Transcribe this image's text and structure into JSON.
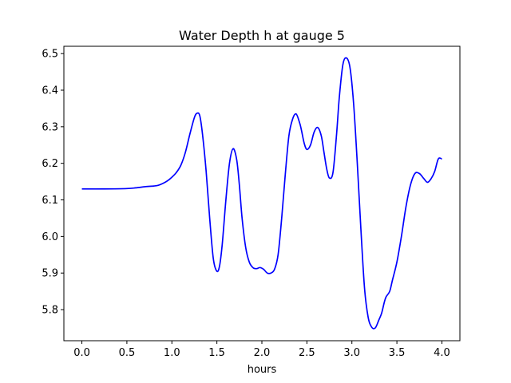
{
  "chart_data": {
    "type": "line",
    "title": "Water Depth h at gauge 5",
    "xlabel": "hours",
    "ylabel": "",
    "xlim": [
      -0.2,
      4.2
    ],
    "ylim": [
      5.715,
      6.52
    ],
    "xticks": [
      0.0,
      0.5,
      1.0,
      1.5,
      2.0,
      2.5,
      3.0,
      3.5,
      4.0
    ],
    "xtick_labels": [
      "0.0",
      "0.5",
      "1.0",
      "1.5",
      "2.0",
      "2.5",
      "3.0",
      "3.5",
      "4.0"
    ],
    "yticks": [
      5.8,
      5.9,
      6.0,
      6.1,
      6.2,
      6.3,
      6.4,
      6.5
    ],
    "ytick_labels": [
      "5.8",
      "5.9",
      "6.0",
      "6.1",
      "6.2",
      "6.3",
      "6.4",
      "6.5"
    ],
    "grid": false,
    "series": [
      {
        "name": "",
        "color": "#0000ff",
        "x": [
          0.0,
          0.25,
          0.5,
          0.6,
          0.7,
          0.8,
          0.85,
          0.9,
          0.95,
          1.0,
          1.05,
          1.1,
          1.15,
          1.2,
          1.25,
          1.28,
          1.31,
          1.34,
          1.38,
          1.42,
          1.46,
          1.5,
          1.53,
          1.56,
          1.6,
          1.64,
          1.68,
          1.72,
          1.75,
          1.78,
          1.82,
          1.86,
          1.9,
          1.94,
          1.98,
          2.02,
          2.06,
          2.1,
          2.14,
          2.18,
          2.22,
          2.26,
          2.3,
          2.34,
          2.38,
          2.42,
          2.44,
          2.47,
          2.5,
          2.54,
          2.58,
          2.62,
          2.66,
          2.69,
          2.72,
          2.75,
          2.79,
          2.83,
          2.86,
          2.9,
          2.94,
          2.98,
          3.02,
          3.06,
          3.1,
          3.14,
          3.18,
          3.22,
          3.26,
          3.3,
          3.33,
          3.36,
          3.38,
          3.42,
          3.45,
          3.5,
          3.55,
          3.6,
          3.65,
          3.7,
          3.75,
          3.8,
          3.84,
          3.88,
          3.92,
          3.96,
          4.0
        ],
        "y": [
          6.13,
          6.13,
          6.131,
          6.133,
          6.136,
          6.138,
          6.14,
          6.145,
          6.152,
          6.162,
          6.175,
          6.195,
          6.23,
          6.28,
          6.325,
          6.337,
          6.33,
          6.28,
          6.18,
          6.05,
          5.94,
          5.905,
          5.92,
          5.98,
          6.1,
          6.2,
          6.24,
          6.21,
          6.14,
          6.05,
          5.97,
          5.93,
          5.915,
          5.912,
          5.915,
          5.91,
          5.9,
          5.9,
          5.91,
          5.95,
          6.05,
          6.17,
          6.275,
          6.32,
          6.335,
          6.31,
          6.29,
          6.255,
          6.238,
          6.25,
          6.285,
          6.298,
          6.275,
          6.23,
          6.185,
          6.16,
          6.175,
          6.28,
          6.38,
          6.47,
          6.488,
          6.46,
          6.36,
          6.2,
          6.02,
          5.86,
          5.78,
          5.752,
          5.75,
          5.772,
          5.79,
          5.82,
          5.835,
          5.85,
          5.88,
          5.93,
          6.0,
          6.08,
          6.14,
          6.172,
          6.172,
          6.158,
          6.148,
          6.158,
          6.178,
          6.212,
          6.212
        ]
      }
    ]
  }
}
